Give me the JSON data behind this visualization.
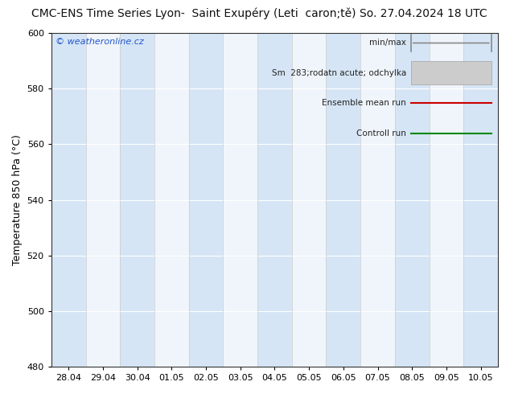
{
  "title_left": "CMC-ENS Time Series Lyon-  Saint Exupéry (Leti  caron;tě)",
  "title_right": "So. 27.04.2024 18 UTC",
  "ylabel": "Temperature 850 hPa (°C)",
  "ylim": [
    480,
    600
  ],
  "yticks": [
    480,
    500,
    520,
    540,
    560,
    580,
    600
  ],
  "xlabels": [
    "28.04",
    "29.04",
    "30.04",
    "01.05",
    "02.05",
    "03.05",
    "04.05",
    "05.05",
    "06.05",
    "07.05",
    "08.05",
    "09.05",
    "10.05"
  ],
  "plot_bg": "#f0f5fb",
  "stripe_color": "#d5e5f5",
  "legend_items": [
    "min/max",
    "Sm  283;rodatn acute; odchylka",
    "Ensemble mean run",
    "Controll run"
  ],
  "legend_line_color": "#aaaaaa",
  "legend_box_color": "#cccccc",
  "legend_box_edge": "#aaaaaa",
  "ensemble_color": "#cc0000",
  "control_color": "#008800",
  "watermark": "© weatheronline.cz",
  "watermark_color": "#2255cc",
  "title_fontsize": 10,
  "legend_fontsize": 7.5,
  "tick_fontsize": 8,
  "ylabel_fontsize": 9
}
